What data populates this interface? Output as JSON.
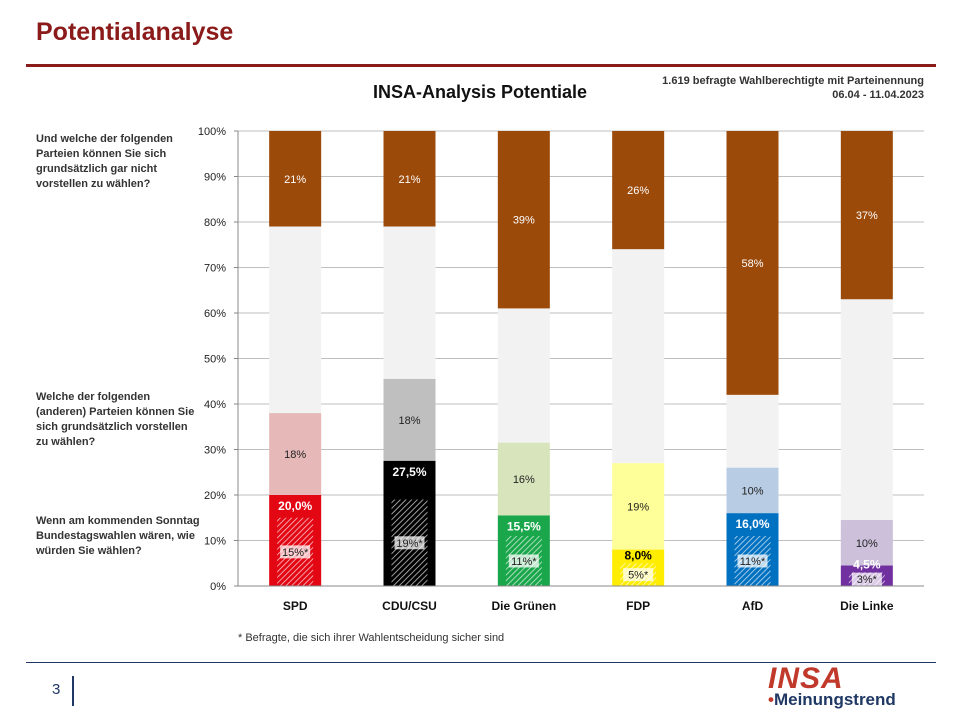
{
  "page": {
    "title": "Potentialanalyse",
    "page_number": "3",
    "footnote": "* Befragte, die sich ihrer Wahlentscheidung sicher sind",
    "source_line1": "1.619 befragte Wahlberechtigte mit Parteinennung",
    "source_line2": "06.04 - 11.04.2023",
    "logo_main": "INSA",
    "logo_sub": "Meinungstrend"
  },
  "questions": {
    "q_cannot": "Und welche der folgenden Parteien können Sie sich grundsätzlich gar nicht vorstellen zu wählen?",
    "q_could": "Welche der folgenden (anderen) Parteien können Sie sich grundsätzlich vorstellen zu wählen?",
    "q_vote": "Wenn am kommenden Sonntag Bundestagswahlen wären, wie würden Sie wählen?"
  },
  "colors": {
    "cannot": "#9b4a0a",
    "undecided": "#f2f2f2",
    "grid": "#bfbfbf",
    "title_red": "#8b1a1a",
    "navy": "#1f3864"
  },
  "chart_data": {
    "type": "bar",
    "stacked": true,
    "title": "INSA-Analysis Potentiale",
    "ylim": [
      0,
      100
    ],
    "yticks": [
      "0%",
      "10%",
      "20%",
      "30%",
      "40%",
      "50%",
      "60%",
      "70%",
      "80%",
      "90%",
      "100%"
    ],
    "categories": [
      "SPD",
      "CDU/CSU",
      "Die Grünen",
      "FDP",
      "AfD",
      "Die Linke"
    ],
    "series": [
      {
        "values": [
          20.0,
          27.5,
          15.5,
          8.0,
          16.0,
          4.5
        ],
        "labels": [
          "20,0%",
          "27,5%",
          "15,5%",
          "8,0%",
          "16,0%",
          "4,5%"
        ]
      },
      {
        "values": [
          15,
          19,
          11,
          5,
          11,
          3
        ],
        "labels": [
          "15%*",
          "19%*",
          "11%*",
          "5%*",
          "11%*",
          "3%*"
        ]
      },
      {
        "values": [
          18,
          18,
          16,
          19,
          10,
          10
        ],
        "labels": [
          "18%",
          "18%",
          "16%",
          "19%",
          "10%",
          "10%"
        ]
      },
      {
        "values": [
          21,
          21,
          39,
          26,
          58,
          37
        ],
        "labels": [
          "21%",
          "21%",
          "39%",
          "26%",
          "58%",
          "37%"
        ]
      }
    ],
    "party_colors": [
      "#e30613",
      "#000000",
      "#1aa64a",
      "#ffed00",
      "#0070c0",
      "#7030a0"
    ],
    "could_colors": [
      "#e6b8b8",
      "#bfbfbf",
      "#d8e4bc",
      "#ffff99",
      "#b8cce4",
      "#ccc0da"
    ],
    "value_text_colors": [
      "#ffffff",
      "#ffffff",
      "#ffffff",
      "#000000",
      "#ffffff",
      "#ffffff"
    ],
    "legend": "none",
    "grid": true
  }
}
